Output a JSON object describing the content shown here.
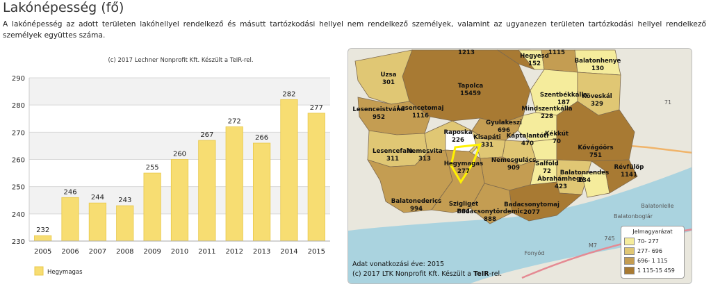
{
  "page": {
    "title": "Lakónépesség (fő)",
    "description": "A lakónépesség az adott területen lakóhellyel rendelkező és másutt tartózkodási hellyel nem rendelkező személyek, valamint az ugyanezen területen tartózkodási hellyel rendelkező személyek együttes száma."
  },
  "chart_data": {
    "type": "bar",
    "subtitle": "(c) 2017 Lechner Nonprofit Kft. Készült a TeIR-rel.",
    "categories": [
      "2005",
      "2006",
      "2007",
      "2008",
      "2009",
      "2010",
      "2011",
      "2012",
      "2013",
      "2014",
      "2015"
    ],
    "series": [
      {
        "name": "Hegymagas",
        "values": [
          232,
          246,
          244,
          243,
          255,
          260,
          267,
          272,
          266,
          282,
          277
        ],
        "color": "#f7dd72"
      }
    ],
    "yticks": [
      230,
      240,
      250,
      260,
      270,
      280,
      290
    ],
    "ylim": [
      230,
      290
    ],
    "grid": true,
    "legend": "bottom-left"
  },
  "map": {
    "municipalities": [
      {
        "name": "",
        "value": "1213"
      },
      {
        "name": "Hegyesd",
        "value": "152"
      },
      {
        "name": "",
        "value": "1115"
      },
      {
        "name": "Balatonhenye",
        "value": "130"
      },
      {
        "name": "Uzsa",
        "value": "301"
      },
      {
        "name": "Tapolca",
        "value": "15459"
      },
      {
        "name": "Szentbékkálla",
        "value": "187"
      },
      {
        "name": "Köveskál",
        "value": "329"
      },
      {
        "name": "Lesenceistvánd",
        "value": "952"
      },
      {
        "name": "Lesencetomaj",
        "value": "1116"
      },
      {
        "name": "Mindszentkálla",
        "value": "228"
      },
      {
        "name": "Gyulakeszi",
        "value": "696"
      },
      {
        "name": "Káptalantóti",
        "value": "470"
      },
      {
        "name": "Kékkút",
        "value": "70"
      },
      {
        "name": "Raposka",
        "value": "226"
      },
      {
        "name": "Kisapáti",
        "value": "331"
      },
      {
        "name": "Kővágóörs",
        "value": "751"
      },
      {
        "name": "Lesencefalu",
        "value": "311"
      },
      {
        "name": "Nemesvita",
        "value": "313"
      },
      {
        "name": "Hegymagas",
        "value": "277"
      },
      {
        "name": "Nemesgulács",
        "value": "909"
      },
      {
        "name": "Salföld",
        "value": "72"
      },
      {
        "name": "Révfülöp",
        "value": "1141"
      },
      {
        "name": "Balatonrendes",
        "value": "134"
      },
      {
        "name": "Ábrahámhegy",
        "value": "423"
      },
      {
        "name": "Balatonederics",
        "value": "994"
      },
      {
        "name": "Szigliget",
        "value": "804"
      },
      {
        "name": "Badacsonytördemic",
        "value": "888"
      },
      {
        "name": "Badacsonytomaj",
        "value": "2077"
      }
    ],
    "legend": {
      "title": "Jelmagyarázat",
      "items": [
        {
          "label": "70-   277",
          "color": "#f5ec9c"
        },
        {
          "label": "277-   696",
          "color": "#e0c774"
        },
        {
          "label": "696-  1 115",
          "color": "#c49d52"
        },
        {
          "label": "1 115-15 459",
          "color": "#a87a33"
        }
      ]
    },
    "footer": {
      "year_line": "Adat vonatkozási éve: 2015",
      "credit_prefix": "(c) 2017 LTK Nonprofit Kft. Készült a ",
      "credit_brand": "TeIR",
      "credit_suffix": "-rel."
    },
    "place_labels": [
      "Balatonlelle",
      "Balatonboglár",
      "Fonyód",
      "M7",
      "71",
      "745"
    ],
    "highlight_color": "#fff200"
  }
}
